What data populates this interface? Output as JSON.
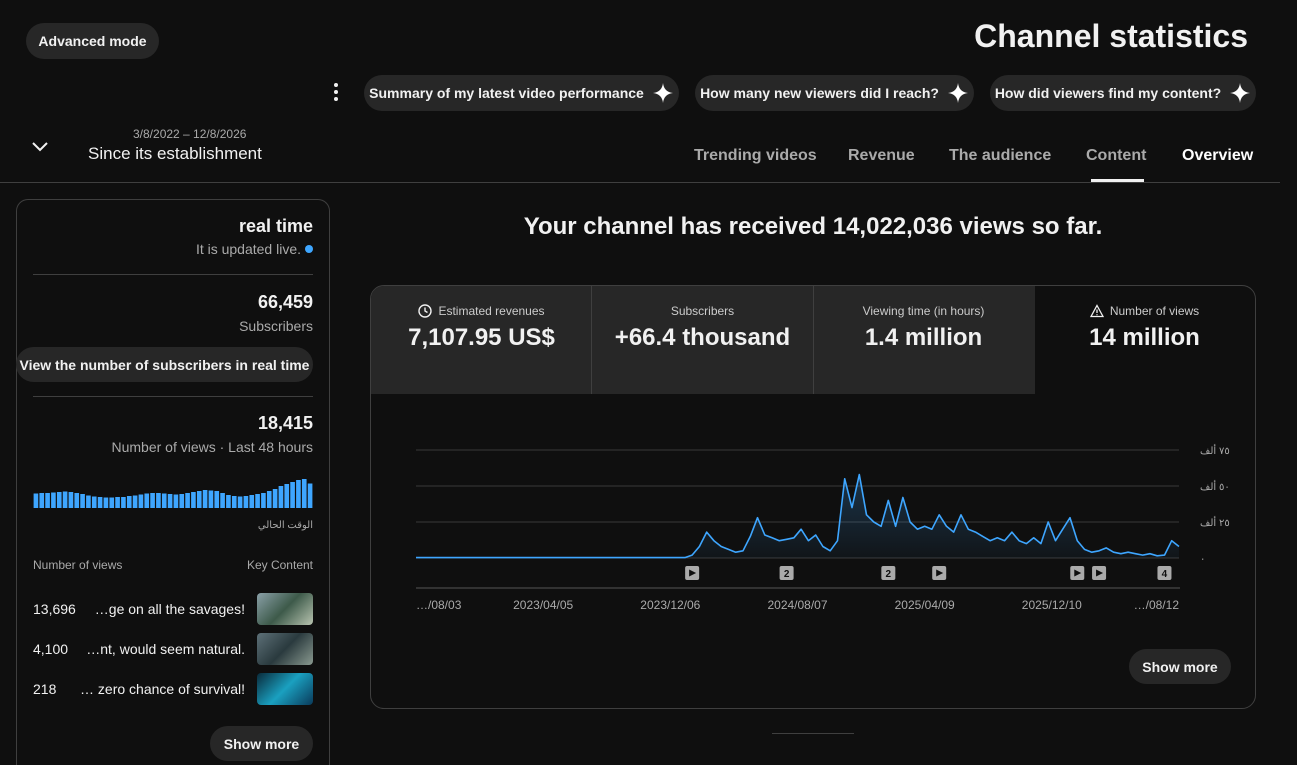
{
  "header": {
    "advanced_mode": "Advanced mode",
    "title": "Channel statistics"
  },
  "suggestions": [
    "Summary of my latest video performance",
    "How many new viewers did I reach?",
    "How did viewers find my content?"
  ],
  "date_range": {
    "dates": "3/8/2022 – 12/8/2026",
    "label": "Since its establishment"
  },
  "tabs": [
    "Trending videos",
    "Revenue",
    "The audience",
    "Content",
    "Overview"
  ],
  "realtime": {
    "title": "real time",
    "subtitle": "It is updated live.",
    "subscribers": "66,459",
    "subscribers_label": "Subscribers",
    "subscribers_button": "View the number of subscribers in real time",
    "views": "18,415",
    "views_label": "Number of views · Last 48 hours",
    "col_views": "Number of views",
    "col_content": "Key Content",
    "videos": [
      {
        "views": "13,696",
        "title": "…ge on all the savages!"
      },
      {
        "views": "4,100",
        "title": "…nt, would seem natural."
      },
      {
        "views": "218",
        "title": "… zero chance of survival!"
      }
    ],
    "show_more": "Show more"
  },
  "overview": {
    "headline": "Your channel has received 14,022,036 views so far.",
    "metrics": [
      {
        "label": "Estimated revenues",
        "value": "7,107.95 US$"
      },
      {
        "label": "Subscribers",
        "value": "+66.4 thousand"
      },
      {
        "label": "Viewing time (in hours)",
        "value": "1.4 million"
      },
      {
        "label": "Number of views",
        "value": "14 million"
      }
    ],
    "show_more": "Show more"
  },
  "chart_data": [
    {
      "type": "line",
      "color": "#3ea6ff",
      "x": [
        "2022/08/03",
        "2022/08/17",
        "2022/08/31",
        "2022/09/14",
        "2022/09/28",
        "2022/10/12",
        "2022/10/26",
        "2022/11/09",
        "2022/11/23",
        "2022/12/07",
        "2022/12/21",
        "2023/01/04",
        "2023/01/18",
        "2023/02/01",
        "2023/02/15",
        "2023/03/01",
        "2023/03/15",
        "2023/03/29",
        "2023/04/12",
        "2023/04/26",
        "2023/05/10",
        "2023/05/24",
        "2023/06/07",
        "2023/06/21",
        "2023/07/05",
        "2023/07/19",
        "2023/08/02",
        "2023/08/16",
        "2023/08/30",
        "2023/09/13",
        "2023/09/27",
        "2023/10/11",
        "2023/10/25",
        "2023/11/08",
        "2023/11/22",
        "2023/12/06",
        "2023/12/20",
        "2024/01/03",
        "2024/01/17",
        "2024/01/31",
        "2024/02/14",
        "2024/02/28",
        "2024/03/13",
        "2024/03/27",
        "2024/04/10",
        "2024/04/24",
        "2024/05/08",
        "2024/05/22",
        "2024/06/05",
        "2024/06/19",
        "2024/07/03",
        "2024/07/17",
        "2024/07/31",
        "2024/08/14",
        "2024/08/28",
        "2024/09/11",
        "2024/09/25",
        "2024/10/09",
        "2024/10/23",
        "2024/11/06",
        "2024/11/20",
        "2024/12/04",
        "2024/12/18",
        "2025/01/01",
        "2025/01/15",
        "2025/01/29",
        "2025/02/12",
        "2025/02/26",
        "2025/03/12",
        "2025/03/26",
        "2025/04/09",
        "2025/04/23",
        "2025/05/07",
        "2025/05/21",
        "2025/06/04",
        "2025/06/18",
        "2025/07/02",
        "2025/07/16",
        "2025/07/30",
        "2025/08/13",
        "2025/08/27",
        "2025/09/10",
        "2025/09/24",
        "2025/10/08",
        "2025/10/22",
        "2025/11/05",
        "2025/11/19",
        "2025/12/03",
        "2025/12/17",
        "2025/12/31",
        "2026/01/14",
        "2026/01/28",
        "2026/02/11",
        "2026/02/25",
        "2026/03/11",
        "2026/03/25",
        "2026/04/08",
        "2026/04/22",
        "2026/05/06",
        "2026/05/20",
        "2026/06/03",
        "2026/06/17",
        "2026/07/01",
        "2026/07/15",
        "2026/07/29",
        "2026/08/12"
      ],
      "values": [
        300,
        300,
        300,
        300,
        300,
        300,
        300,
        300,
        300,
        300,
        300,
        300,
        300,
        300,
        300,
        300,
        300,
        300,
        300,
        300,
        300,
        300,
        300,
        300,
        300,
        300,
        300,
        300,
        300,
        300,
        300,
        300,
        300,
        300,
        300,
        300,
        300,
        300,
        2000,
        8000,
        18000,
        12000,
        8000,
        6000,
        4000,
        5000,
        15000,
        28000,
        16000,
        14000,
        12000,
        13000,
        14000,
        20000,
        12000,
        16000,
        8000,
        5000,
        12000,
        55000,
        35000,
        58000,
        30000,
        25000,
        22000,
        40000,
        22000,
        42000,
        25000,
        20000,
        22000,
        20000,
        30000,
        22000,
        18000,
        30000,
        20000,
        18000,
        15000,
        12000,
        14000,
        12000,
        18000,
        12000,
        10000,
        14000,
        10000,
        25000,
        12000,
        20000,
        28000,
        12000,
        6000,
        4000,
        5000,
        7000,
        4000,
        3000,
        4000,
        3000,
        2000,
        3000,
        1500,
        2000,
        12000,
        8000
      ],
      "xlim": [
        "2022/08/03",
        "2026/08/12"
      ],
      "xticks": [
        {
          "value": "2022/08/03",
          "label": "…/08/03"
        },
        {
          "value": "2023/04/05",
          "label": "2023/04/05"
        },
        {
          "value": "2023/12/06",
          "label": "2023/12/06"
        },
        {
          "value": "2024/08/07",
          "label": "2024/08/07"
        },
        {
          "value": "2025/04/09",
          "label": "2025/04/09"
        },
        {
          "value": "2025/12/10",
          "label": "2025/12/10"
        },
        {
          "value": "2026/08/12",
          "label": "…/08/12"
        }
      ],
      "ylim": [
        0,
        75000
      ],
      "yticks": [
        {
          "value": 0,
          "label": "٠"
        },
        {
          "value": 25000,
          "label": "٢٥ ألف"
        },
        {
          "value": 50000,
          "label": "٥٠ ألف"
        },
        {
          "value": 75000,
          "label": "٧٥ ألف"
        }
      ],
      "grid": true,
      "markers": [
        {
          "x": "2024/01/17",
          "label": null
        },
        {
          "x": "2024/07/17",
          "label": "2"
        },
        {
          "x": "2025/01/29",
          "label": "2"
        },
        {
          "x": "2025/05/07",
          "label": null
        },
        {
          "x": "2026/01/28",
          "label": null
        },
        {
          "x": "2026/03/11",
          "label": null
        },
        {
          "x": "2026/07/15",
          "label": "4"
        }
      ]
    },
    {
      "type": "bar",
      "color": "#3ea6ff",
      "values": [
        290,
        300,
        300,
        310,
        320,
        330,
        320,
        300,
        280,
        250,
        230,
        220,
        210,
        210,
        220,
        220,
        240,
        250,
        270,
        290,
        300,
        300,
        290,
        280,
        270,
        280,
        300,
        320,
        340,
        360,
        350,
        340,
        300,
        260,
        240,
        230,
        240,
        260,
        280,
        300,
        340,
        380,
        440,
        480,
        520,
        560,
        580,
        490
      ],
      "x_label": "الوقت الحالي"
    }
  ]
}
